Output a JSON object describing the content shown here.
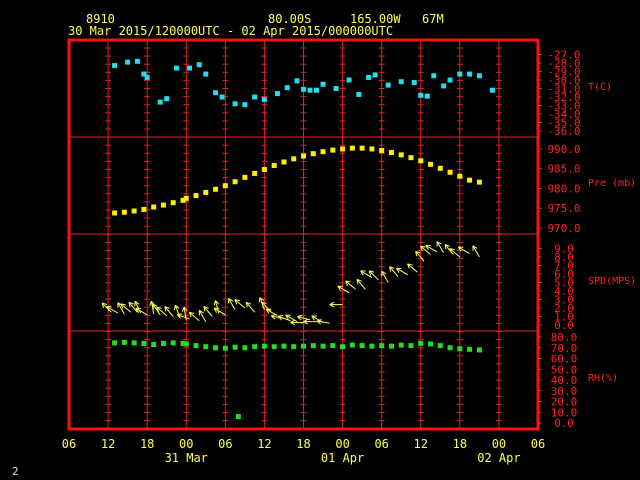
{
  "header": {
    "station_id": "8910",
    "latitude": "80.00S",
    "longitude": "165.00W",
    "elevation": "67M",
    "time_range": "30 Mar 2015/120000UTC - 02 Apr 2015/000000UTC"
  },
  "footer_label": "2",
  "colors": {
    "frame": "#ff1010",
    "grid": "#e02020",
    "axis_text": "#ffff55",
    "label_text": "#ff2020",
    "temperature": "#22ddee",
    "pressure": "#ffee00",
    "wind": "#ffff55",
    "humidity": "#22dd22"
  },
  "chart_data": {
    "type": "scatter",
    "x_axis": {
      "unit": "hours",
      "range": [
        -6,
        66
      ],
      "tick_labels": [
        {
          "x": -6,
          "label": "06"
        },
        {
          "x": 0,
          "label": "12"
        },
        {
          "x": 6,
          "label": "18"
        },
        {
          "x": 12,
          "label": "00"
        },
        {
          "x": 18,
          "label": "06"
        },
        {
          "x": 24,
          "label": "12"
        },
        {
          "x": 30,
          "label": "18"
        },
        {
          "x": 36,
          "label": "00"
        },
        {
          "x": 42,
          "label": "06"
        },
        {
          "x": 48,
          "label": "12"
        },
        {
          "x": 54,
          "label": "18"
        },
        {
          "x": 60,
          "label": "00"
        },
        {
          "x": 66,
          "label": "06"
        }
      ],
      "date_labels": [
        {
          "x": 12,
          "label": "31 Mar"
        },
        {
          "x": 36,
          "label": "01 Apr"
        },
        {
          "x": 60,
          "label": "02 Apr"
        }
      ]
    },
    "panels": [
      {
        "name": "T(C)",
        "kind": "points",
        "ylim": [
          -36.0,
          -26.0
        ],
        "ticks": [
          -27.0,
          -28.0,
          -29.0,
          -30.0,
          -31.0,
          -32.0,
          -33.0,
          -34.0,
          -35.0,
          -36.0
        ],
        "x": [
          1,
          3,
          4.5,
          5.5,
          6,
          8,
          9,
          10.5,
          12.5,
          14,
          15,
          16.5,
          17.5,
          19.5,
          21,
          22.5,
          24,
          26,
          27.5,
          29,
          30,
          31,
          32,
          33,
          35,
          37,
          38.5,
          40,
          41,
          43,
          45,
          47,
          48,
          49,
          50,
          51.5,
          52.5,
          54,
          55.5,
          57,
          59
        ],
        "y": [
          -28.3,
          -27.9,
          -27.8,
          -29.3,
          -29.7,
          -32.6,
          -32.2,
          -28.6,
          -28.6,
          -28.2,
          -29.3,
          -31.5,
          -32.0,
          -32.8,
          -32.9,
          -32.0,
          -32.3,
          -31.6,
          -30.9,
          -30.1,
          -31.1,
          -31.2,
          -31.2,
          -30.5,
          -31.0,
          -30.0,
          -31.7,
          -29.7,
          -29.4,
          -30.6,
          -30.2,
          -30.3,
          -31.8,
          -31.9,
          -29.5,
          -30.7,
          -30.0,
          -29.3,
          -29.3,
          -29.5,
          -31.2
        ]
      },
      {
        "name": "Pre (mb)",
        "kind": "points",
        "ylim": [
          970.0,
          991.5
        ],
        "ticks": [
          970.0,
          975.0,
          980.0,
          985.0,
          990.0
        ],
        "x": [
          1,
          2.5,
          4,
          5.5,
          7,
          8.5,
          10,
          11.5,
          12,
          13.5,
          15,
          16.5,
          18,
          19.5,
          21,
          22.5,
          24,
          25.5,
          27,
          28.5,
          30,
          31.5,
          33,
          34.5,
          36,
          37.5,
          39,
          40.5,
          42,
          43.5,
          45,
          46.5,
          48,
          49.5,
          51,
          52.5,
          54,
          55.5,
          57
        ],
        "y": [
          973.8,
          974.0,
          974.3,
          974.7,
          975.3,
          975.8,
          976.4,
          977.0,
          977.5,
          978.2,
          979.0,
          979.8,
          980.7,
          981.7,
          982.8,
          983.8,
          984.8,
          985.8,
          986.7,
          987.5,
          988.2,
          988.8,
          989.3,
          989.7,
          990.0,
          990.2,
          990.2,
          990.0,
          989.6,
          989.1,
          988.5,
          987.8,
          987.0,
          986.1,
          985.1,
          984.1,
          983.1,
          982.1,
          981.6
        ]
      },
      {
        "name": "SPD(MPS)",
        "kind": "wind_arrows",
        "ylim": [
          0.0,
          10.0
        ],
        "ticks": [
          0.0,
          1.0,
          2.0,
          3.0,
          4.0,
          5.0,
          6.0,
          7.0,
          8.0,
          9.0
        ],
        "x": [
          0.5,
          1.5,
          2.5,
          3.5,
          4.5,
          5,
          6,
          7,
          8,
          9,
          10,
          11,
          12,
          12.5,
          14,
          15,
          16,
          17,
          18,
          19.5,
          21,
          22.5,
          24,
          25,
          26,
          27,
          28,
          29,
          30,
          31,
          32,
          33,
          34,
          36,
          37,
          38,
          39.5,
          40.5,
          41.5,
          43,
          44.5,
          46,
          47.5,
          48.5,
          49.5,
          50.5,
          51.5,
          53,
          54,
          55.5,
          57
        ],
        "y": [
          1.5,
          1.4,
          1.3,
          1.5,
          1.5,
          1.4,
          1.2,
          1.3,
          1.2,
          1.1,
          1.0,
          0.9,
          0.6,
          0.7,
          0.5,
          0.4,
          1.0,
          1.4,
          1.2,
          1.8,
          2.0,
          1.5,
          1.8,
          1.6,
          1.1,
          0.8,
          0.5,
          0.4,
          0.3,
          0.6,
          0.4,
          0.3,
          0.2,
          2.4,
          3.8,
          4.2,
          4.2,
          5.6,
          5.3,
          5.0,
          5.7,
          5.9,
          6.2,
          7.5,
          8.3,
          8.6,
          8.5,
          8.3,
          8.0,
          8.4,
          8.0
        ],
        "dir_deg": [
          315,
          300,
          330,
          310,
          320,
          335,
          300,
          350,
          325,
          310,
          320,
          340,
          350,
          290,
          310,
          330,
          320,
          345,
          300,
          330,
          310,
          320,
          340,
          315,
          300,
          280,
          290,
          300,
          270,
          285,
          270,
          300,
          280,
          270,
          300,
          310,
          320,
          300,
          315,
          330,
          320,
          300,
          310,
          320,
          310,
          300,
          330,
          320,
          310,
          300,
          330
        ]
      },
      {
        "name": "RH(%)",
        "kind": "points",
        "ylim": [
          0.0,
          80.0
        ],
        "ticks": [
          0.0,
          10.0,
          20.0,
          30.0,
          40.0,
          50.0,
          60.0,
          70.0,
          80.0
        ],
        "x": [
          1,
          2.5,
          4,
          5.5,
          7,
          8.5,
          10,
          11.5,
          12,
          13.5,
          15,
          16.5,
          18,
          19.5,
          21,
          22.5,
          24,
          25.5,
          27,
          28.5,
          30,
          31.5,
          33,
          34.5,
          36,
          37.5,
          39,
          40.5,
          42,
          43.5,
          45,
          46.5,
          48,
          49.5,
          51,
          52.5,
          54,
          55.5,
          57,
          20
        ],
        "y": [
          74.5,
          75.0,
          74.5,
          74.0,
          73.0,
          74.0,
          74.5,
          74.0,
          73.5,
          72.0,
          71.0,
          70.0,
          69.5,
          70.5,
          70.0,
          71.0,
          71.5,
          71.0,
          71.5,
          71.0,
          71.5,
          72.0,
          71.5,
          72.0,
          71.0,
          72.5,
          72.0,
          71.5,
          72.0,
          71.5,
          72.5,
          72.0,
          74.0,
          73.5,
          72.0,
          70.0,
          69.0,
          68.5,
          68.0,
          6.0
        ]
      }
    ]
  }
}
